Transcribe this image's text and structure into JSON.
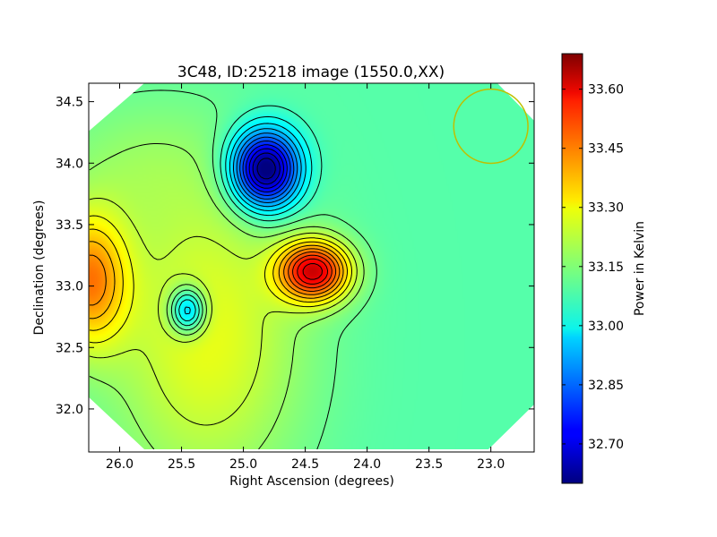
{
  "chart_data": {
    "type": "heatmap",
    "title": "3C48, ID:25218 image (1550.0,XX)",
    "xlabel": "Right Ascension (degrees)",
    "ylabel": "Declination (degrees)",
    "xlim": [
      26.25,
      22.65
    ],
    "ylim": [
      31.65,
      34.65
    ],
    "x_ticks": [
      "26.0",
      "25.5",
      "25.0",
      "24.5",
      "24.0",
      "23.5",
      "23.0"
    ],
    "x_tick_values": [
      26.0,
      25.5,
      25.0,
      24.5,
      24.0,
      23.5,
      23.0
    ],
    "y_ticks": [
      "32.0",
      "32.5",
      "33.0",
      "33.5",
      "34.0",
      "34.5"
    ],
    "y_tick_values": [
      32.0,
      32.5,
      33.0,
      33.5,
      34.0,
      34.5
    ],
    "colorbar": {
      "label": "Power in Kelvin",
      "colormap": "jet",
      "range": [
        32.6,
        33.69
      ],
      "ticks": [
        "32.70",
        "32.85",
        "33.00",
        "33.15",
        "33.30",
        "33.45",
        "33.60"
      ],
      "tick_values": [
        32.7,
        32.85,
        33.0,
        33.15,
        33.3,
        33.45,
        33.6
      ]
    },
    "features": [
      {
        "type": "minimum",
        "ra": 24.82,
        "dec": 33.95,
        "value": 32.6
      },
      {
        "type": "maximum",
        "ra": 24.43,
        "dec": 33.12,
        "value": 33.69
      },
      {
        "type": "minimum",
        "ra": 25.45,
        "dec": 32.8,
        "value": 32.95
      },
      {
        "type": "high",
        "ra": 26.25,
        "dec": 33.05,
        "value": 33.52
      },
      {
        "type": "background",
        "ra": 23.3,
        "dec": 33.2,
        "value": 33.1
      }
    ],
    "beam_circle": {
      "ra": 23.0,
      "dec": 34.3,
      "radius_deg": 0.3,
      "color": "#bfbf00"
    },
    "contours": "black",
    "grid": false
  }
}
